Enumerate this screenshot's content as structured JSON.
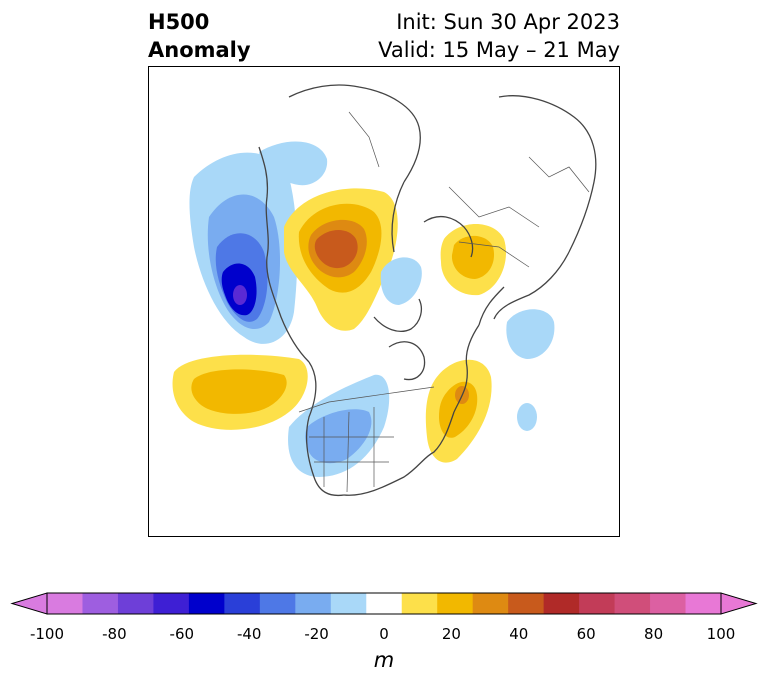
{
  "title": {
    "left_line1": "H500",
    "left_line2": "Anomaly",
    "right_line1": "Init: Sun 30 Apr 2023",
    "right_line2": "Valid: 15 May – 21 May"
  },
  "colorbar": {
    "unit": "m",
    "min": -100,
    "max": 100,
    "extend": "both",
    "ticks": [
      "-100",
      "-80",
      "-60",
      "-40",
      "-20",
      "0",
      "20",
      "40",
      "60",
      "80",
      "100"
    ],
    "levels": [
      -100,
      -90,
      -80,
      -70,
      -60,
      -50,
      -40,
      -30,
      -20,
      -10,
      10,
      20,
      30,
      40,
      50,
      60,
      70,
      80,
      90,
      100
    ],
    "colors": [
      "#d97be0",
      "#9e5ee0",
      "#6e3fd8",
      "#3e1fd4",
      "#0000cc",
      "#2a3fd8",
      "#4e78e6",
      "#79acf0",
      "#a9d8f8",
      "#ffffff",
      "#fde04a",
      "#f2b800",
      "#de8a12",
      "#c85a1c",
      "#b02a28",
      "#c23c58",
      "#d04e7a",
      "#dc60a2",
      "#e878d6"
    ]
  },
  "map": {
    "projection": "north-polar-stereographic",
    "anomaly_centers": [
      {
        "region": "Gulf of Alaska / NE Pacific",
        "sign": "negative",
        "peak_m": -80
      },
      {
        "region": "Western Canada / Alaska interior",
        "sign": "positive",
        "peak_m": 50
      },
      {
        "region": "Western United States",
        "sign": "negative",
        "peak_m": -30
      },
      {
        "region": "Subtropical Pacific",
        "sign": "positive",
        "peak_m": 30
      },
      {
        "region": "Eastern Canada / NE US",
        "sign": "positive",
        "peak_m": 30
      },
      {
        "region": "Central Russia",
        "sign": "positive",
        "peak_m": 30
      },
      {
        "region": "Arctic Ocean",
        "sign": "negative",
        "peak_m": -20
      },
      {
        "region": "Western Europe",
        "sign": "negative",
        "peak_m": -20
      },
      {
        "region": "North Atlantic",
        "sign": "negative",
        "peak_m": -20
      }
    ]
  }
}
